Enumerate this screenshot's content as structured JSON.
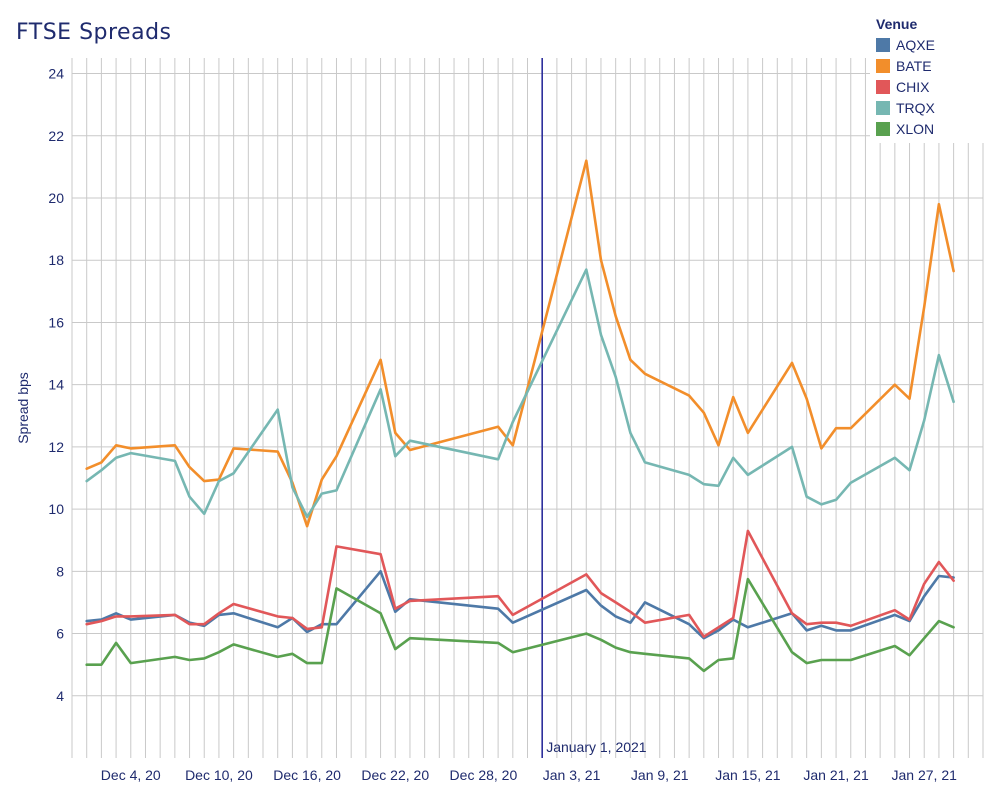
{
  "chart_data": {
    "type": "line",
    "title": "FTSE Spreads",
    "xlabel": "",
    "ylabel": "Spread bps",
    "ylim": [
      2,
      24.5
    ],
    "y_ticks": [
      4,
      6,
      8,
      10,
      12,
      14,
      16,
      18,
      20,
      22,
      24
    ],
    "x_range": [
      "2020-11-30",
      "2021-01-31"
    ],
    "x_ticks": [
      {
        "date": "2020-12-04",
        "label": "Dec 4, 20"
      },
      {
        "date": "2020-12-10",
        "label": "Dec 10, 20"
      },
      {
        "date": "2020-12-16",
        "label": "Dec 16, 20"
      },
      {
        "date": "2020-12-22",
        "label": "Dec 22, 20"
      },
      {
        "date": "2020-12-28",
        "label": "Dec 28, 20"
      },
      {
        "date": "2021-01-03",
        "label": "Jan 3, 21"
      },
      {
        "date": "2021-01-09",
        "label": "Jan 9, 21"
      },
      {
        "date": "2021-01-15",
        "label": "Jan 15, 21"
      },
      {
        "date": "2021-01-21",
        "label": "Jan 21, 21"
      },
      {
        "date": "2021-01-27",
        "label": "Jan 27, 21"
      }
    ],
    "grid": "vertical daily gridlines and horizontal gridlines",
    "reference_line": {
      "date": "2021-01-01",
      "label": "January 1, 2021",
      "color": "#2d2f9c"
    },
    "legend": {
      "title": "Venue",
      "position": "top-right"
    },
    "dates": [
      "2020-12-01",
      "2020-12-02",
      "2020-12-03",
      "2020-12-04",
      "2020-12-07",
      "2020-12-08",
      "2020-12-09",
      "2020-12-10",
      "2020-12-11",
      "2020-12-14",
      "2020-12-15",
      "2020-12-16",
      "2020-12-17",
      "2020-12-18",
      "2020-12-21",
      "2020-12-22",
      "2020-12-23",
      "2020-12-29",
      "2020-12-30",
      "2021-01-04",
      "2021-01-05",
      "2021-01-06",
      "2021-01-07",
      "2021-01-08",
      "2021-01-11",
      "2021-01-12",
      "2021-01-13",
      "2021-01-14",
      "2021-01-15",
      "2021-01-18",
      "2021-01-19",
      "2021-01-20",
      "2021-01-21",
      "2021-01-22",
      "2021-01-25",
      "2021-01-26",
      "2021-01-27",
      "2021-01-28",
      "2021-01-29"
    ],
    "series": [
      {
        "name": "AQXE",
        "color": "#4e79a7",
        "values": [
          6.4,
          6.45,
          6.65,
          6.45,
          6.6,
          6.35,
          6.25,
          6.6,
          6.65,
          6.2,
          6.5,
          6.05,
          6.3,
          6.3,
          8.0,
          6.7,
          7.1,
          6.8,
          6.35,
          7.4,
          6.9,
          6.55,
          6.35,
          7.0,
          6.3,
          5.85,
          6.1,
          6.45,
          6.2,
          6.65,
          6.1,
          6.25,
          6.1,
          6.1,
          6.6,
          6.4,
          7.2,
          7.85,
          7.8
        ]
      },
      {
        "name": "BATE",
        "color": "#f28e2b",
        "values": [
          11.3,
          11.5,
          12.05,
          11.95,
          12.05,
          11.35,
          10.9,
          10.95,
          11.95,
          11.85,
          10.85,
          9.45,
          10.95,
          11.7,
          14.8,
          12.45,
          11.9,
          12.65,
          12.05,
          21.2,
          18.0,
          16.2,
          14.8,
          14.35,
          13.65,
          13.1,
          12.05,
          13.6,
          12.45,
          14.7,
          13.55,
          11.95,
          12.6,
          12.6,
          14.0,
          13.55,
          16.5,
          19.8,
          17.65
        ]
      },
      {
        "name": "CHIX",
        "color": "#e15759",
        "values": [
          6.3,
          6.4,
          6.55,
          6.55,
          6.6,
          6.3,
          6.3,
          6.65,
          6.95,
          6.55,
          6.5,
          6.15,
          6.2,
          8.8,
          8.55,
          6.8,
          7.05,
          7.2,
          6.6,
          7.9,
          7.3,
          7.0,
          6.7,
          6.35,
          6.6,
          5.9,
          6.2,
          6.5,
          9.3,
          6.65,
          6.3,
          6.35,
          6.35,
          6.25,
          6.75,
          6.45,
          7.6,
          8.3,
          7.7
        ]
      },
      {
        "name": "TRQX",
        "color": "#76b7b2",
        "values": [
          10.9,
          11.25,
          11.65,
          11.8,
          11.55,
          10.4,
          9.85,
          10.9,
          11.15,
          13.2,
          10.7,
          9.75,
          10.5,
          10.6,
          13.85,
          11.7,
          12.2,
          11.6,
          12.8,
          17.7,
          15.6,
          14.25,
          12.45,
          11.5,
          11.1,
          10.8,
          10.75,
          11.65,
          11.1,
          12.0,
          10.4,
          10.15,
          10.3,
          10.85,
          11.65,
          11.25,
          12.85,
          14.95,
          13.45
        ]
      },
      {
        "name": "XLON",
        "color": "#59a14f",
        "values": [
          5.0,
          5.0,
          5.7,
          5.05,
          5.25,
          5.15,
          5.2,
          5.4,
          5.65,
          5.25,
          5.35,
          5.05,
          5.05,
          7.45,
          6.65,
          5.5,
          5.85,
          5.7,
          5.4,
          6.0,
          5.8,
          5.55,
          5.4,
          5.35,
          5.2,
          4.8,
          5.15,
          5.2,
          7.75,
          5.4,
          5.05,
          5.15,
          5.15,
          5.15,
          5.6,
          5.3,
          5.85,
          6.4,
          6.2
        ]
      }
    ]
  }
}
